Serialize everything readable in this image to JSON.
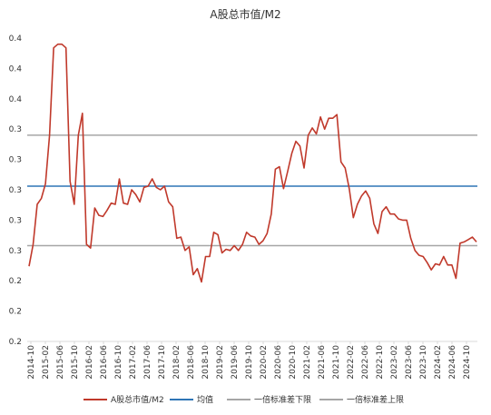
{
  "chart_data": {
    "type": "line",
    "title": "A股总市值/M2",
    "x_labels": [
      "2014-10",
      "2015-02",
      "2015-06",
      "2015-10",
      "2016-02",
      "2016-06",
      "2016-10",
      "2017-02",
      "2017-06",
      "2017-10",
      "2018-02",
      "2018-06",
      "2018-10",
      "2019-02",
      "2019-06",
      "2019-10",
      "2020-02",
      "2020-06",
      "2020-10",
      "2021-02",
      "2021-06",
      "2021-10",
      "2022-02",
      "2022-06",
      "2022-10",
      "2023-02",
      "2023-06",
      "2023-10",
      "2024-02",
      "2024-06",
      "2024-10"
    ],
    "y_ticks": [
      "0.2",
      "0.2",
      "0.2",
      "0.3",
      "0.3",
      "0.3",
      "0.3",
      "0.3",
      "0.4",
      "0.4",
      "0.4"
    ],
    "ylim": [
      0.2,
      0.45
    ],
    "series": [
      {
        "name": "A股总市值/M2",
        "color": "#C0392B",
        "values": [
          0.262,
          0.28,
          0.313,
          0.318,
          0.33,
          0.37,
          0.442,
          0.445,
          0.445,
          0.442,
          0.332,
          0.313,
          0.37,
          0.388,
          0.28,
          0.277,
          0.31,
          0.304,
          0.303,
          0.308,
          0.314,
          0.313,
          0.334,
          0.314,
          0.313,
          0.325,
          0.321,
          0.315,
          0.327,
          0.328,
          0.334,
          0.327,
          0.325,
          0.328,
          0.315,
          0.311,
          0.285,
          0.286,
          0.275,
          0.278,
          0.255,
          0.26,
          0.249,
          0.27,
          0.27,
          0.29,
          0.288,
          0.273,
          0.276,
          0.275,
          0.279,
          0.275,
          0.28,
          0.29,
          0.287,
          0.286,
          0.28,
          0.283,
          0.289,
          0.305,
          0.342,
          0.344,
          0.326,
          0.34,
          0.355,
          0.365,
          0.361,
          0.343,
          0.37,
          0.376,
          0.371,
          0.385,
          0.375,
          0.384,
          0.384,
          0.387,
          0.348,
          0.343,
          0.326,
          0.302,
          0.313,
          0.32,
          0.324,
          0.318,
          0.297,
          0.289,
          0.307,
          0.311,
          0.305,
          0.305,
          0.301,
          0.3,
          0.3,
          0.285,
          0.275,
          0.271,
          0.27,
          0.265,
          0.259,
          0.264,
          0.263,
          0.27,
          0.263,
          0.263,
          0.252,
          0.281,
          0.282,
          0.284,
          0.286,
          0.282
        ]
      },
      {
        "name": "均值",
        "color": "#2E75B6",
        "values": [
          0.328
        ]
      },
      {
        "name": "一倍标准差下限",
        "color": "#A6A6A6",
        "values": [
          0.279
        ]
      },
      {
        "name": "一倍标准差上限",
        "color": "#A6A6A6",
        "values": [
          0.37
        ]
      }
    ],
    "grid": false,
    "legend": "bottom"
  }
}
